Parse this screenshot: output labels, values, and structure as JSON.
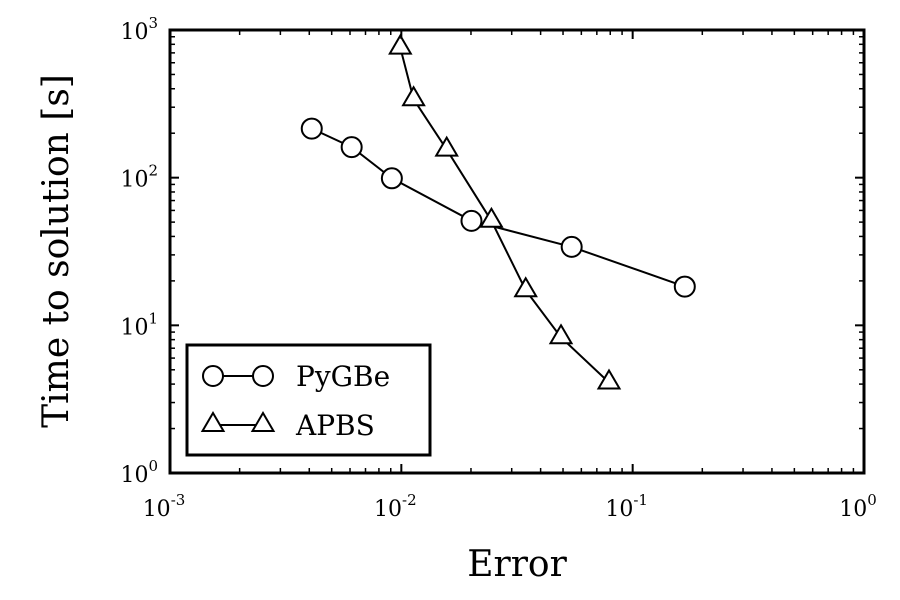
{
  "chart_data": {
    "type": "line",
    "xlabel": "Error",
    "ylabel": "Time to solution [s]",
    "x_scale": "log",
    "y_scale": "log",
    "xlim": [
      0.001,
      1
    ],
    "ylim": [
      1,
      1000
    ],
    "grid": false,
    "legend_position": "lower-left",
    "x_ticks": [
      {
        "value": 0.001,
        "base": "10",
        "exp": "-3"
      },
      {
        "value": 0.01,
        "base": "10",
        "exp": "-2"
      },
      {
        "value": 0.1,
        "base": "10",
        "exp": "-1"
      },
      {
        "value": 1,
        "base": "10",
        "exp": "0"
      }
    ],
    "y_ticks": [
      {
        "value": 1,
        "base": "10",
        "exp": "0"
      },
      {
        "value": 10,
        "base": "10",
        "exp": "1"
      },
      {
        "value": 100,
        "base": "10",
        "exp": "2"
      },
      {
        "value": 1000,
        "base": "10",
        "exp": "3"
      }
    ],
    "series": [
      {
        "name": "PyGBe",
        "marker": "circle",
        "color": "#000000",
        "x": [
          0.0041,
          0.0061,
          0.0091,
          0.0201,
          0.0545,
          0.168
        ],
        "y": [
          215,
          161,
          99,
          51,
          34,
          18.3
        ]
      },
      {
        "name": "APBS",
        "marker": "triangle",
        "color": "#000000",
        "x": [
          0.0099,
          0.0113,
          0.0157,
          0.0245,
          0.0345,
          0.049,
          0.079
        ],
        "y": [
          760,
          340,
          155,
          51,
          17.3,
          8.3,
          4.1
        ]
      }
    ]
  }
}
